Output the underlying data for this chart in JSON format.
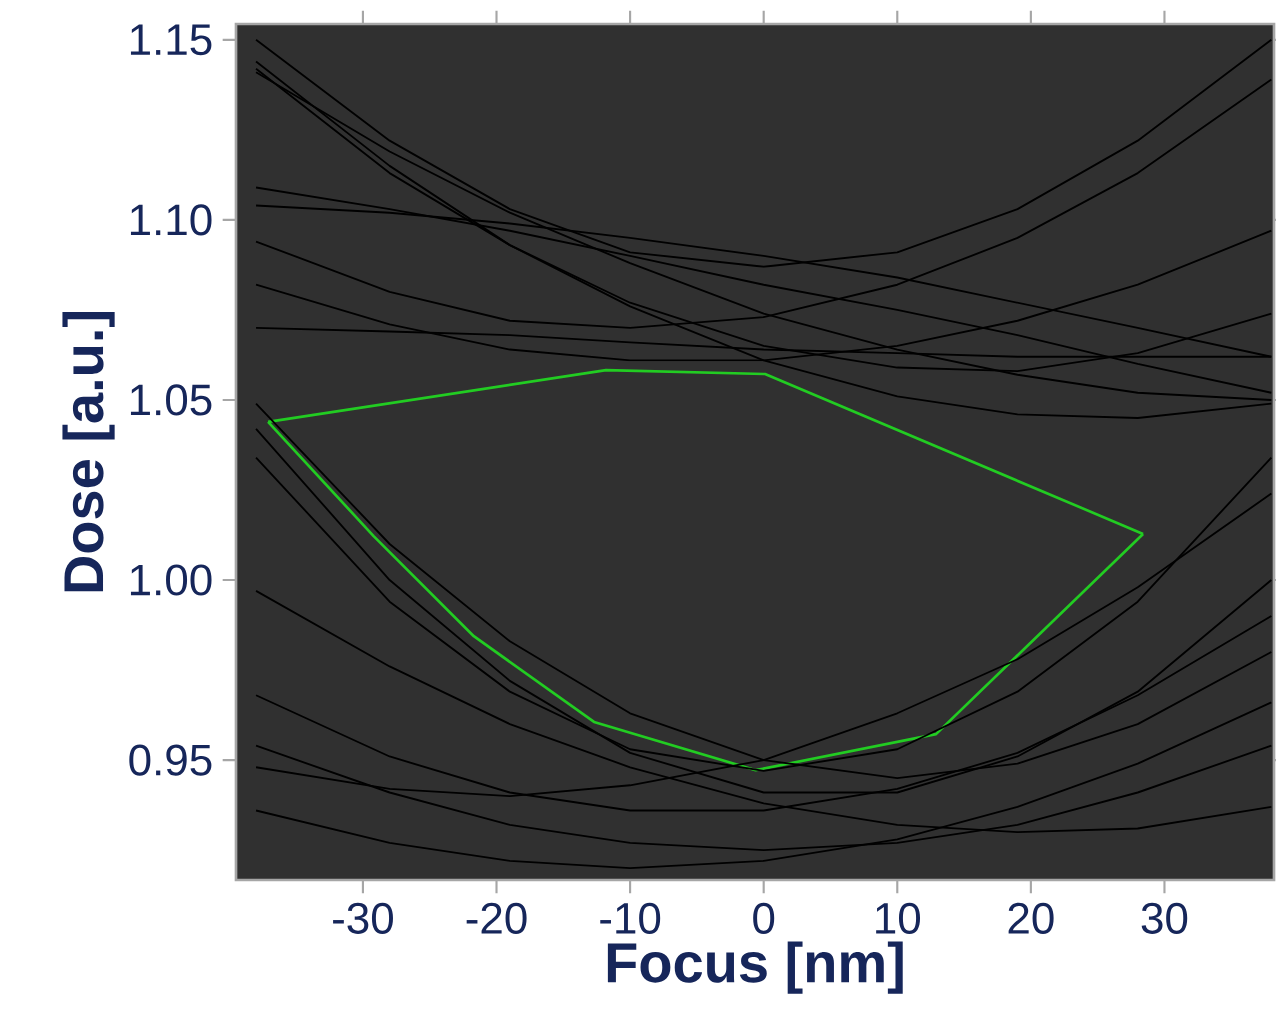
{
  "chart_data": {
    "type": "line",
    "xlabel": "Focus [nm]",
    "ylabel": "Dose [a.u.]",
    "x": [
      -38,
      -28,
      -19,
      -10,
      0,
      10,
      19,
      28,
      38
    ],
    "xlim": [
      -39.5,
      38.2
    ],
    "ylim": [
      0.9167,
      1.1544
    ],
    "xticks": [
      -30,
      -20,
      -10,
      0,
      10,
      20,
      30
    ],
    "yticks": [
      {
        "value": 0.95,
        "label": "0.95"
      },
      {
        "value": 1.0,
        "label": "1.00"
      },
      {
        "value": 1.05,
        "label": "1.05"
      },
      {
        "value": 1.1,
        "label": "1.10"
      },
      {
        "value": 1.15,
        "label": "1.15"
      }
    ],
    "marker": "none",
    "line_style": "solid",
    "series": [
      {
        "color": "#22cc22",
        "x": [
          -37.1,
          -29.2,
          -21.7,
          -12.7,
          -0.6,
          12.9,
          28.4
        ],
        "values": [
          1.0439,
          1.0122,
          0.9844,
          0.9606,
          0.9472,
          0.9572,
          1.0128
        ]
      },
      {
        "color": "#22cc22",
        "x": [
          -37.1,
          -11.8,
          0.1,
          28.4
        ],
        "values": [
          1.0439,
          1.0583,
          1.0572,
          1.0128
        ]
      },
      {
        "color": "#000000",
        "values": [
          1.15,
          1.122,
          1.103,
          1.091,
          1.087,
          1.091,
          1.103,
          1.122,
          1.15
        ]
      },
      {
        "color": "#000000",
        "values": [
          1.142,
          1.113,
          1.093,
          1.077,
          1.065,
          1.059,
          1.058,
          1.063,
          1.074
        ]
      },
      {
        "color": "#000000",
        "values": [
          1.144,
          1.115,
          1.093,
          1.076,
          1.061,
          1.051,
          1.046,
          1.045,
          1.049
        ]
      },
      {
        "color": "#000000",
        "values": [
          1.141,
          1.119,
          1.102,
          1.088,
          1.074,
          1.064,
          1.057,
          1.052,
          1.05
        ]
      },
      {
        "color": "#000000",
        "values": [
          1.07,
          1.069,
          1.068,
          1.066,
          1.064,
          1.063,
          1.062,
          1.062,
          1.062
        ]
      },
      {
        "color": "#000000",
        "values": [
          1.104,
          1.102,
          1.099,
          1.095,
          1.09,
          1.084,
          1.077,
          1.07,
          1.062
        ]
      },
      {
        "color": "#000000",
        "values": [
          1.082,
          1.071,
          1.064,
          1.061,
          1.061,
          1.065,
          1.072,
          1.082,
          1.097
        ]
      },
      {
        "color": "#000000",
        "values": [
          1.094,
          1.08,
          1.072,
          1.07,
          1.073,
          1.082,
          1.095,
          1.113,
          1.139
        ]
      },
      {
        "color": "#000000",
        "values": [
          1.109,
          1.103,
          1.097,
          1.09,
          1.082,
          1.075,
          1.068,
          1.06,
          1.052
        ]
      },
      {
        "color": "#000000",
        "values": [
          1.034,
          0.994,
          0.969,
          0.953,
          0.947,
          0.953,
          0.969,
          0.994,
          1.034
        ]
      },
      {
        "color": "#000000",
        "values": [
          1.042,
          1.0,
          0.972,
          0.952,
          0.941,
          0.941,
          0.951,
          0.969,
          1.0
        ]
      },
      {
        "color": "#000000",
        "values": [
          0.968,
          0.951,
          0.941,
          0.936,
          0.936,
          0.942,
          0.952,
          0.968,
          0.99
        ]
      },
      {
        "color": "#000000",
        "values": [
          0.954,
          0.941,
          0.932,
          0.927,
          0.925,
          0.927,
          0.932,
          0.941,
          0.954
        ]
      },
      {
        "color": "#000000",
        "values": [
          1.049,
          1.01,
          0.983,
          0.963,
          0.95,
          0.945,
          0.949,
          0.96,
          0.98
        ]
      },
      {
        "color": "#000000",
        "values": [
          0.997,
          0.976,
          0.96,
          0.948,
          0.938,
          0.932,
          0.93,
          0.931,
          0.937
        ]
      },
      {
        "color": "#000000",
        "values": [
          0.948,
          0.942,
          0.94,
          0.943,
          0.95,
          0.963,
          0.978,
          0.998,
          1.024
        ]
      },
      {
        "color": "#000000",
        "values": [
          0.936,
          0.927,
          0.922,
          0.92,
          0.922,
          0.928,
          0.937,
          0.949,
          0.966
        ]
      }
    ]
  }
}
